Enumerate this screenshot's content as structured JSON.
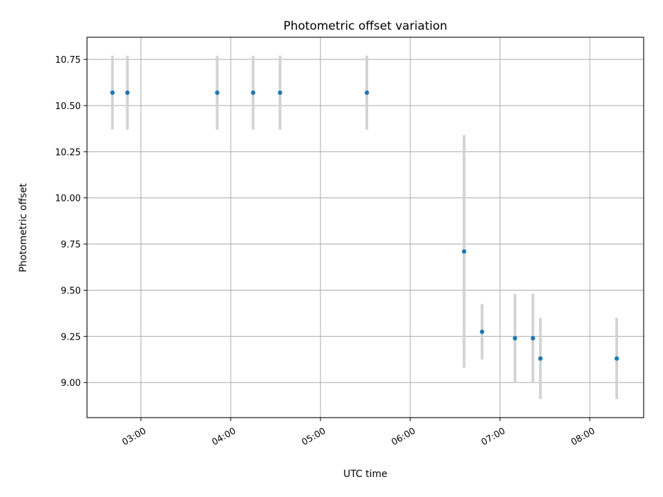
{
  "chart_data": {
    "type": "scatter",
    "title": "Photometric offset variation",
    "xlabel": "UTC time",
    "ylabel": "Photometric offset",
    "x_tick_labels": [
      "03:00",
      "04:00",
      "05:00",
      "06:00",
      "07:00",
      "08:00"
    ],
    "y_tick_labels": [
      "9.00",
      "9.25",
      "9.50",
      "9.75",
      "10.00",
      "10.25",
      "10.50",
      "10.75"
    ],
    "xlim": [
      "02:24",
      "08:36"
    ],
    "ylim": [
      8.81,
      10.87
    ],
    "grid": true,
    "series": [
      {
        "points": [
          {
            "x": "02:41",
            "y": 10.57,
            "yerr": 0.2
          },
          {
            "x": "02:51",
            "y": 10.57,
            "yerr": 0.2
          },
          {
            "x": "03:51",
            "y": 10.57,
            "yerr": 0.2
          },
          {
            "x": "04:15",
            "y": 10.57,
            "yerr": 0.2
          },
          {
            "x": "04:33",
            "y": 10.57,
            "yerr": 0.2
          },
          {
            "x": "05:31",
            "y": 10.57,
            "yerr": 0.2
          },
          {
            "x": "06:36",
            "y": 9.71,
            "yerr": 0.63
          },
          {
            "x": "06:48",
            "y": 9.275,
            "yerr": 0.15
          },
          {
            "x": "07:10",
            "y": 9.24,
            "yerr": 0.24
          },
          {
            "x": "07:22",
            "y": 9.24,
            "yerr": 0.24
          },
          {
            "x": "07:27",
            "y": 9.13,
            "yerr": 0.22
          },
          {
            "x": "08:18",
            "y": 9.13,
            "yerr": 0.22
          }
        ]
      }
    ],
    "colors": {
      "marker": "#1f77b4",
      "errorbar": "#d3d3d3",
      "grid": "#b0b0b0",
      "axes": "#000000"
    }
  }
}
